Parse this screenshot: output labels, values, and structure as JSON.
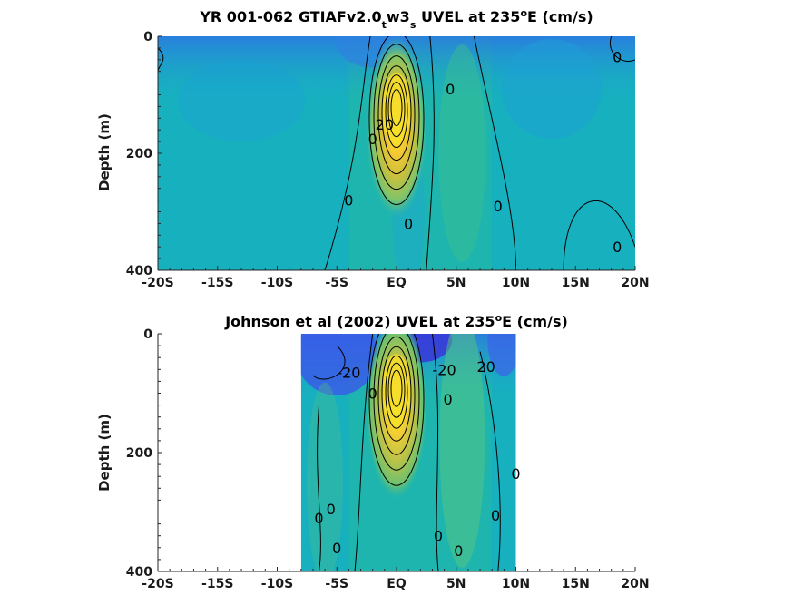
{
  "chart_data": [
    {
      "type": "heatmap",
      "title_main": "YR 001-062 GTIAFv2.0",
      "title_sub1": "t",
      "title_mid": "w3",
      "title_sub2": "s",
      "title_post": " UVEL at 235",
      "title_sup": "o",
      "title_end": "E (cm/s)",
      "ylabel": "Depth (m)",
      "xlim": [
        -20,
        20
      ],
      "ylim": [
        0,
        400
      ],
      "y_reversed": true,
      "x_ticks": [
        -20,
        -15,
        -10,
        -5,
        0,
        5,
        10,
        15,
        20
      ],
      "x_tick_labels": [
        "-20S",
        "-15S",
        "-10S",
        "-5S",
        "EQ",
        "5N",
        "10N",
        "15N",
        "20N"
      ],
      "y_ticks": [
        0,
        200,
        400
      ],
      "y_tick_labels": [
        "0",
        "200",
        "400"
      ],
      "data_xlim": [
        -20,
        20
      ],
      "core": {
        "lat": 0,
        "depth": 125,
        "peak_speed": 100
      },
      "contour_labels": [
        {
          "text": "0",
          "lat": 18.5,
          "depth": 35
        },
        {
          "text": "0",
          "lat": 4.5,
          "depth": 90
        },
        {
          "text": "0",
          "lat": -2,
          "depth": 175
        },
        {
          "text": "0",
          "lat": -4,
          "depth": 280
        },
        {
          "text": "0",
          "lat": 1,
          "depth": 320
        },
        {
          "text": "0",
          "lat": 8.5,
          "depth": 290
        },
        {
          "text": "0",
          "lat": 18.5,
          "depth": 360
        },
        {
          "text": "20",
          "lat": -1,
          "depth": 150
        }
      ]
    },
    {
      "type": "heatmap",
      "title_main": "Johnson et al (2002) UVEL at 235",
      "title_sup": "o",
      "title_end": "E (cm/s)",
      "ylabel": "Depth (m)",
      "xlim": [
        -20,
        20
      ],
      "ylim": [
        0,
        400
      ],
      "y_reversed": true,
      "x_ticks": [
        -20,
        -15,
        -10,
        -5,
        0,
        5,
        10,
        15,
        20
      ],
      "x_tick_labels": [
        "-20S",
        "-15S",
        "-10S",
        "-5S",
        "EQ",
        "5N",
        "10N",
        "15N",
        "20N"
      ],
      "y_ticks": [
        0,
        200,
        400
      ],
      "y_tick_labels": [
        "0",
        "200",
        "400"
      ],
      "data_xlim": [
        -8,
        10
      ],
      "core": {
        "lat": 0,
        "depth": 95,
        "peak_speed": 100
      },
      "contour_labels": [
        {
          "text": "-20",
          "lat": -4,
          "depth": 65
        },
        {
          "text": "-20",
          "lat": 4,
          "depth": 60
        },
        {
          "text": "20",
          "lat": 7.5,
          "depth": 55
        },
        {
          "text": "0",
          "lat": -2,
          "depth": 100
        },
        {
          "text": "0",
          "lat": 4.3,
          "depth": 110
        },
        {
          "text": "0",
          "lat": 10,
          "depth": 235
        },
        {
          "text": "0",
          "lat": -6.5,
          "depth": 310
        },
        {
          "text": "0",
          "lat": -5.5,
          "depth": 295
        },
        {
          "text": "0",
          "lat": 8.3,
          "depth": 305
        },
        {
          "text": "0",
          "lat": 3.5,
          "depth": 340
        },
        {
          "text": "0",
          "lat": -5,
          "depth": 360
        },
        {
          "text": "0",
          "lat": 5.2,
          "depth": 365
        }
      ]
    }
  ]
}
